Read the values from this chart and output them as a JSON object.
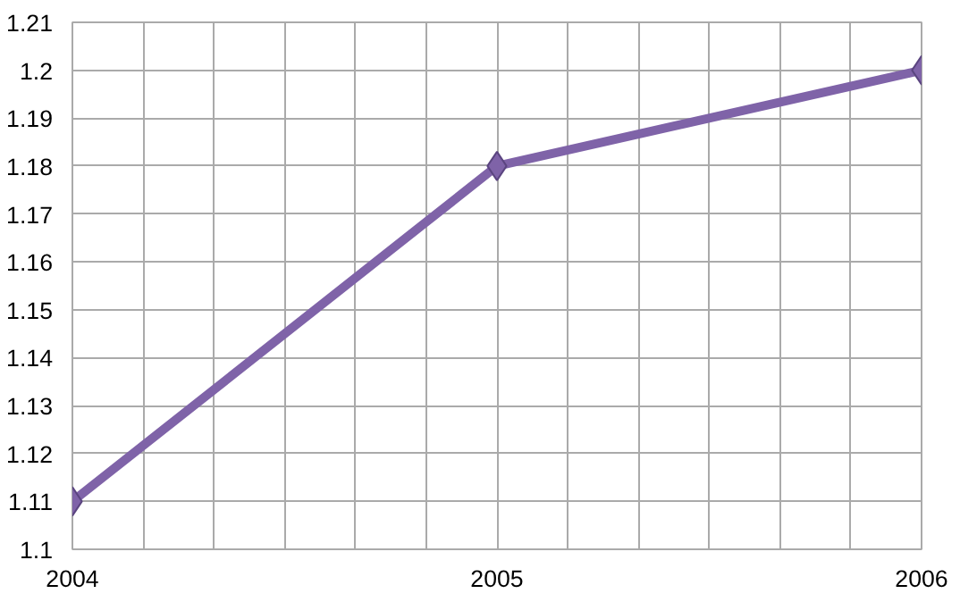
{
  "chart_data": {
    "type": "line",
    "x": [
      2004,
      2005,
      2006
    ],
    "series": [
      {
        "color": "#7f63a8",
        "values": [
          1.11,
          1.18,
          1.2
        ]
      }
    ],
    "xlim": [
      2004,
      2006
    ],
    "xticks": [
      2004,
      2005,
      2006
    ],
    "ylim": [
      1.1,
      1.21
    ],
    "yticks": [
      1.1,
      1.11,
      1.12,
      1.13,
      1.14,
      1.15,
      1.16,
      1.17,
      1.18,
      1.19,
      1.2,
      1.21
    ],
    "grid": true,
    "marker": "diamond",
    "line_style": "solid"
  }
}
